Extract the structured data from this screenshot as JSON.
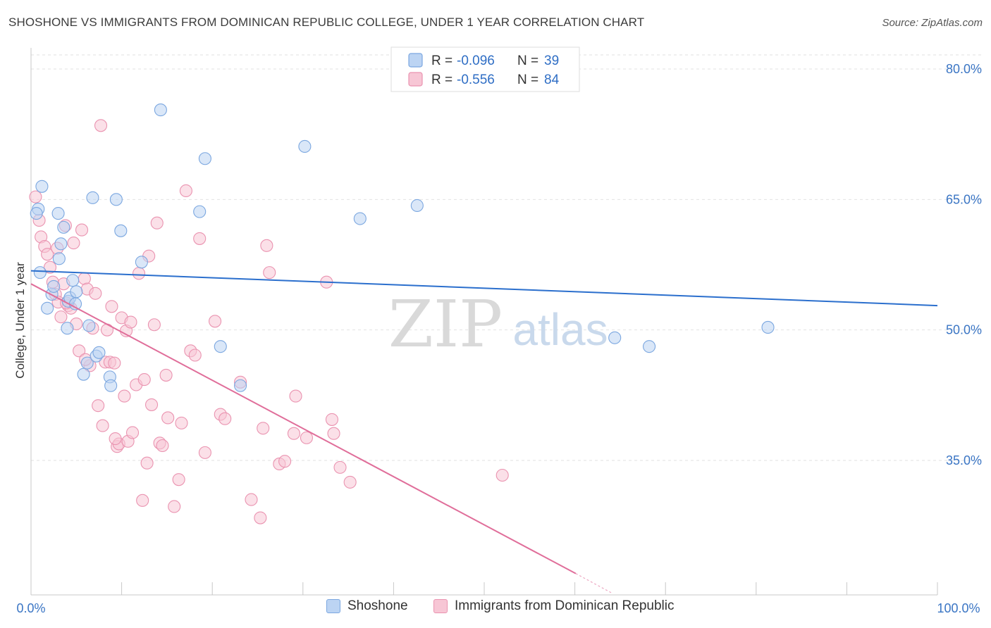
{
  "chart_data": {
    "type": "scatter",
    "title": "SHOSHONE VS IMMIGRANTS FROM DOMINICAN REPUBLIC COLLEGE, UNDER 1 YEAR CORRELATION CHART",
    "source": "Source: ZipAtlas.com",
    "xlabel": "",
    "ylabel": "College, Under 1 year",
    "xlim": [
      0,
      100
    ],
    "ylim": [
      20,
      82
    ],
    "x_tick_labels": [
      "0.0%",
      "100.0%"
    ],
    "y_ticks": [
      35,
      50,
      65,
      80
    ],
    "y_tick_labels": [
      "35.0%",
      "50.0%",
      "65.0%",
      "80.0%"
    ],
    "grid": true,
    "legend_position": "top-center",
    "watermark": {
      "part1": "ZIP",
      "part2": "atlas"
    },
    "series": [
      {
        "name": "Shoshone",
        "color": "#7ba7e0",
        "fill": "#bcd4f3",
        "line_color": "#2b6fcd",
        "r_label": "R =",
        "r_value": "-0.096",
        "n_label": "N =",
        "n_value": "39",
        "trend": {
          "x": [
            0,
            100
          ],
          "y": [
            56.8,
            52.8
          ]
        },
        "points": [
          [
            0.8,
            63.9
          ],
          [
            1.2,
            66.5
          ],
          [
            0.6,
            63.4
          ],
          [
            1.0,
            56.6
          ],
          [
            1.8,
            52.5
          ],
          [
            2.3,
            54.1
          ],
          [
            2.5,
            55.0
          ],
          [
            3.3,
            59.9
          ],
          [
            3.1,
            58.2
          ],
          [
            3.0,
            63.4
          ],
          [
            3.6,
            61.8
          ],
          [
            4.0,
            50.2
          ],
          [
            4.1,
            53.3
          ],
          [
            4.3,
            53.7
          ],
          [
            4.6,
            55.7
          ],
          [
            4.9,
            53.0
          ],
          [
            5.0,
            54.4
          ],
          [
            5.8,
            44.9
          ],
          [
            6.2,
            46.2
          ],
          [
            6.4,
            50.5
          ],
          [
            6.8,
            65.2
          ],
          [
            7.2,
            47.0
          ],
          [
            7.5,
            47.4
          ],
          [
            8.7,
            44.6
          ],
          [
            8.8,
            43.6
          ],
          [
            9.4,
            65.0
          ],
          [
            9.9,
            61.4
          ],
          [
            12.2,
            57.8
          ],
          [
            14.3,
            75.3
          ],
          [
            18.6,
            63.6
          ],
          [
            19.2,
            69.7
          ],
          [
            20.9,
            48.1
          ],
          [
            23.1,
            43.6
          ],
          [
            30.2,
            71.1
          ],
          [
            36.3,
            62.8
          ],
          [
            42.6,
            64.3
          ],
          [
            64.4,
            49.1
          ],
          [
            68.2,
            48.1
          ],
          [
            81.3,
            50.3
          ]
        ]
      },
      {
        "name": "Immigrants from Dominican Republic",
        "color": "#ea93b0",
        "fill": "#f7c6d5",
        "line_color": "#e06e9a",
        "r_label": "R =",
        "r_value": "-0.556",
        "n_label": "N =",
        "n_value": "84",
        "trend": {
          "x": [
            0,
            60.1
          ],
          "y": [
            55.3,
            22.0
          ]
        },
        "trend_dashed": {
          "x": [
            60.1,
            64.0
          ],
          "y": [
            22.0,
            19.8
          ]
        },
        "points": [
          [
            0.5,
            65.3
          ],
          [
            0.9,
            62.6
          ],
          [
            1.1,
            60.7
          ],
          [
            1.5,
            59.6
          ],
          [
            1.8,
            58.7
          ],
          [
            2.1,
            57.2
          ],
          [
            2.4,
            55.5
          ],
          [
            2.7,
            54.1
          ],
          [
            3.0,
            53.2
          ],
          [
            3.3,
            51.5
          ],
          [
            3.6,
            55.3
          ],
          [
            3.8,
            62.0
          ],
          [
            4.1,
            52.8
          ],
          [
            4.4,
            52.5
          ],
          [
            4.7,
            60.0
          ],
          [
            5.0,
            50.7
          ],
          [
            5.3,
            47.6
          ],
          [
            5.6,
            61.5
          ],
          [
            5.9,
            55.9
          ],
          [
            6.2,
            54.7
          ],
          [
            6.5,
            45.9
          ],
          [
            6.8,
            50.2
          ],
          [
            7.1,
            54.2
          ],
          [
            7.4,
            41.3
          ],
          [
            7.7,
            73.5
          ],
          [
            7.9,
            39.0
          ],
          [
            8.2,
            46.3
          ],
          [
            8.4,
            50.0
          ],
          [
            8.7,
            46.3
          ],
          [
            8.9,
            52.7
          ],
          [
            9.2,
            46.2
          ],
          [
            9.5,
            36.6
          ],
          [
            9.7,
            36.9
          ],
          [
            10.0,
            51.4
          ],
          [
            10.3,
            42.4
          ],
          [
            10.5,
            49.9
          ],
          [
            10.7,
            37.2
          ],
          [
            11.0,
            50.9
          ],
          [
            11.2,
            38.2
          ],
          [
            11.6,
            43.7
          ],
          [
            11.9,
            56.5
          ],
          [
            12.3,
            30.4
          ],
          [
            12.5,
            44.3
          ],
          [
            12.8,
            34.7
          ],
          [
            13.0,
            58.5
          ],
          [
            13.3,
            41.4
          ],
          [
            13.6,
            50.6
          ],
          [
            13.9,
            62.3
          ],
          [
            14.2,
            37.0
          ],
          [
            14.5,
            36.7
          ],
          [
            14.9,
            44.8
          ],
          [
            15.1,
            39.9
          ],
          [
            15.8,
            29.7
          ],
          [
            16.3,
            32.8
          ],
          [
            16.6,
            39.3
          ],
          [
            17.1,
            66.0
          ],
          [
            17.6,
            47.6
          ],
          [
            18.1,
            47.1
          ],
          [
            18.6,
            60.5
          ],
          [
            19.2,
            35.9
          ],
          [
            20.3,
            51.0
          ],
          [
            20.9,
            40.3
          ],
          [
            21.4,
            39.8
          ],
          [
            23.1,
            44.0
          ],
          [
            24.3,
            30.5
          ],
          [
            25.3,
            28.4
          ],
          [
            25.6,
            38.7
          ],
          [
            26.0,
            59.7
          ],
          [
            26.3,
            56.6
          ],
          [
            27.4,
            34.6
          ],
          [
            28.0,
            34.9
          ],
          [
            29.2,
            42.4
          ],
          [
            29.0,
            38.1
          ],
          [
            30.4,
            37.6
          ],
          [
            32.6,
            55.5
          ],
          [
            33.2,
            39.7
          ],
          [
            33.4,
            38.1
          ],
          [
            34.1,
            34.2
          ],
          [
            35.2,
            32.5
          ],
          [
            52.0,
            33.3
          ],
          [
            3.9,
            53.1
          ],
          [
            2.9,
            59.4
          ],
          [
            6.0,
            46.6
          ],
          [
            9.3,
            37.5
          ]
        ]
      }
    ]
  }
}
